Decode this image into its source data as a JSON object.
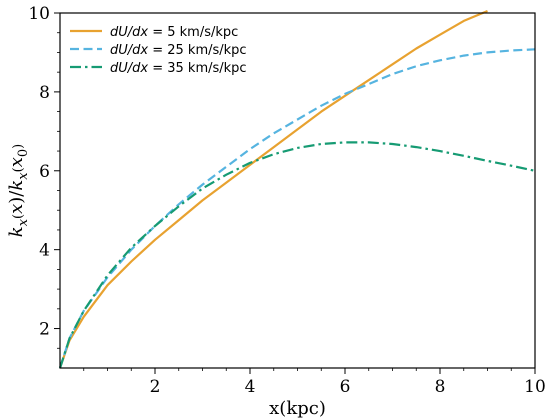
{
  "chart_data": {
    "type": "line",
    "title": "",
    "xlabel": "x(kpc)",
    "ylabel": "k_x(x)/k_x(x_0)",
    "xlim": [
      0.0,
      10.0
    ],
    "ylim": [
      1.0,
      10.0
    ],
    "xticks": [
      2,
      4,
      6,
      8,
      10
    ],
    "yticks": [
      2,
      4,
      6,
      8,
      10
    ],
    "grid": false,
    "legend_position": "top-left",
    "series": [
      {
        "name": "dU/dx = 5 km/s/kpc",
        "legend_prefix": "dU/dx",
        "legend_suffix": " = 5 km/s/kpc",
        "color": "#E8A230",
        "style": "solid",
        "x": [
          0.0,
          0.2,
          0.5,
          1.0,
          1.5,
          2.0,
          2.5,
          3.0,
          3.5,
          4.0,
          4.5,
          5.0,
          5.5,
          6.0,
          6.5,
          7.0,
          7.5,
          8.0,
          8.5,
          9.0
        ],
        "y": [
          1.0,
          1.7,
          2.3,
          3.1,
          3.7,
          4.25,
          4.75,
          5.25,
          5.7,
          6.15,
          6.6,
          7.05,
          7.5,
          7.9,
          8.3,
          8.7,
          9.1,
          9.45,
          9.8,
          10.05
        ]
      },
      {
        "name": "dU/dx = 25 km/s/kpc",
        "legend_prefix": "dU/dx",
        "legend_suffix": " = 25 km/s/kpc",
        "color": "#56B4E0",
        "style": "dashed",
        "x": [
          0.0,
          0.2,
          0.5,
          1.0,
          1.5,
          2.0,
          2.5,
          3.0,
          3.5,
          4.0,
          4.5,
          5.0,
          5.5,
          6.0,
          6.5,
          7.0,
          7.5,
          8.0,
          8.5,
          9.0,
          9.5,
          10.0
        ],
        "y": [
          1.0,
          1.75,
          2.45,
          3.3,
          4.0,
          4.6,
          5.15,
          5.65,
          6.1,
          6.55,
          6.95,
          7.3,
          7.65,
          7.95,
          8.2,
          8.45,
          8.65,
          8.8,
          8.92,
          9.0,
          9.05,
          9.08
        ]
      },
      {
        "name": "dU/dx = 35 km/s/kpc",
        "legend_prefix": "dU/dx",
        "legend_suffix": " = 35 km/s/kpc",
        "color": "#169B73",
        "style": "dashdot",
        "x": [
          0.0,
          0.2,
          0.5,
          1.0,
          1.5,
          2.0,
          2.5,
          3.0,
          3.5,
          4.0,
          4.5,
          5.0,
          5.5,
          6.0,
          6.5,
          7.0,
          7.5,
          8.0,
          8.5,
          9.0,
          9.5,
          10.0
        ],
        "y": [
          1.0,
          1.75,
          2.45,
          3.35,
          4.05,
          4.6,
          5.1,
          5.55,
          5.9,
          6.2,
          6.42,
          6.58,
          6.68,
          6.72,
          6.72,
          6.68,
          6.6,
          6.5,
          6.38,
          6.25,
          6.13,
          6.0
        ]
      }
    ]
  }
}
